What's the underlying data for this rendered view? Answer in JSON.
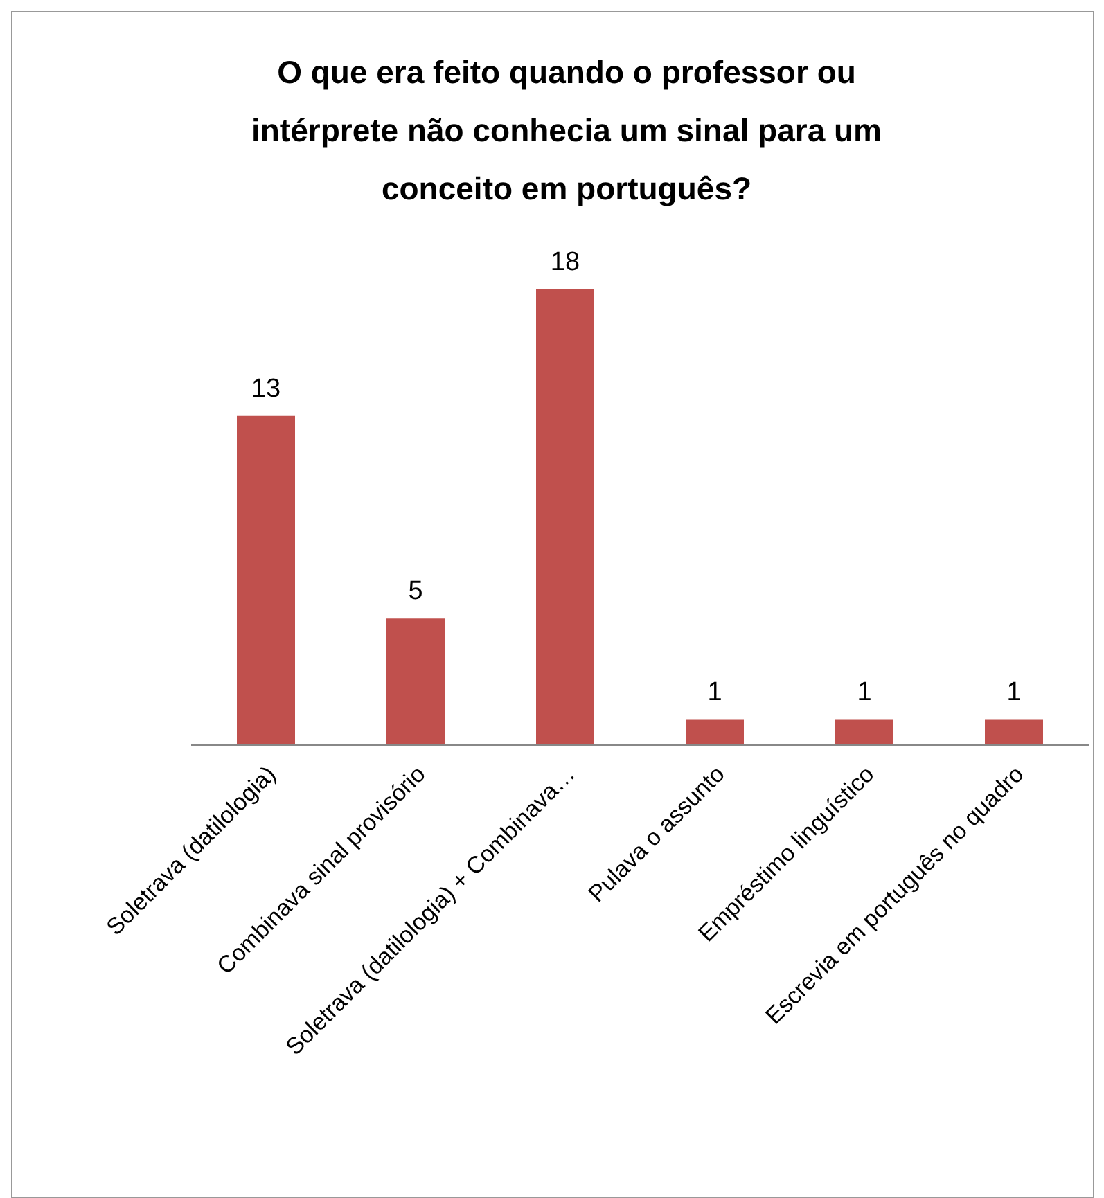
{
  "chart_data": {
    "type": "bar",
    "title": "O que era feito quando o professor ou intérprete não conhecia um sinal para um conceito em português?",
    "categories": [
      "Soletrava (datilologia)",
      "Combinava sinal provisório",
      "Soletrava (datilologia) + Combinava…",
      "Pulava o assunto",
      "Empréstimo linguístico",
      "Escrevia em português no quadro"
    ],
    "values": [
      13,
      5,
      18,
      1,
      1,
      1
    ],
    "color": "#c0504d",
    "data_labels": true
  }
}
